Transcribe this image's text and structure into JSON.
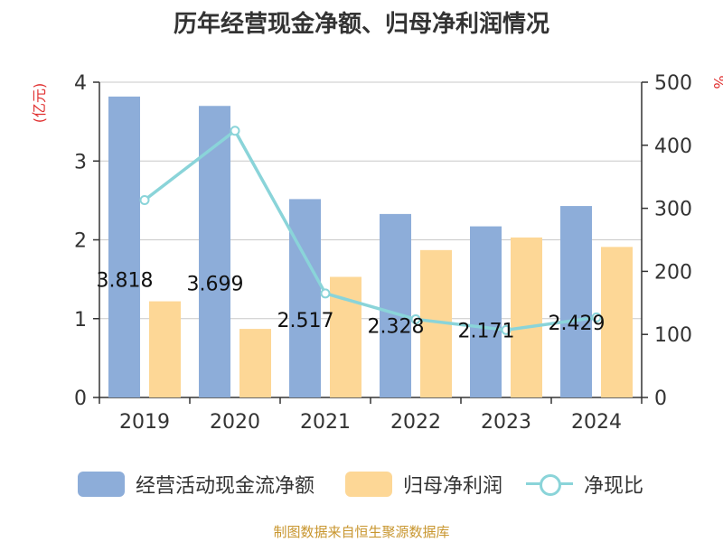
{
  "title": "历年经营现金净额、归母净利润情况",
  "source": "制图数据来自恒生聚源数据库",
  "chart_data": {
    "type": "bar",
    "categories": [
      "2019",
      "2020",
      "2021",
      "2022",
      "2023",
      "2024"
    ],
    "series": [
      {
        "name": "经营活动现金流净额",
        "type": "bar",
        "axis": "left",
        "color": "#8dadd9",
        "values": [
          3.818,
          3.699,
          2.517,
          2.328,
          2.171,
          2.429
        ],
        "labels": [
          "3.818",
          "3.699",
          "2.517",
          "2.328",
          "2.171",
          "2.429"
        ]
      },
      {
        "name": "归母净利润",
        "type": "bar",
        "axis": "left",
        "color": "#fdd796",
        "values": [
          1.22,
          0.87,
          1.53,
          1.87,
          2.03,
          1.91
        ]
      },
      {
        "name": "净现比",
        "type": "line",
        "axis": "right",
        "color": "#8ad4d9",
        "values": [
          313,
          423,
          165,
          124,
          107,
          127
        ]
      }
    ],
    "y_left": {
      "label": "(亿元)",
      "min": 0,
      "max": 4,
      "ticks": [
        "0",
        "1",
        "2",
        "3",
        "4"
      ]
    },
    "y_right": {
      "label": "%",
      "min": 0,
      "max": 500,
      "ticks": [
        "0",
        "100",
        "200",
        "300",
        "400",
        "500"
      ]
    },
    "grid": true,
    "legend": "bottom"
  }
}
